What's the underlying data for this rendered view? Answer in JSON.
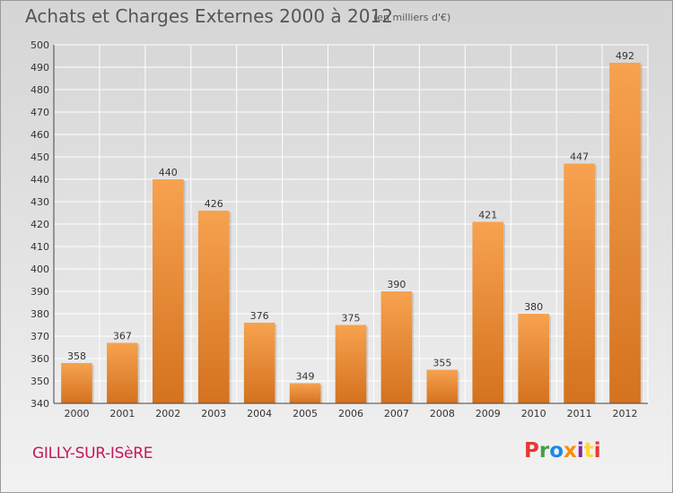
{
  "header": {
    "title": "Achats et Charges Externes 2000 à 2012",
    "subtitle": "(en milliers d'€)"
  },
  "footer": {
    "commune": "GILLY-SUR-ISèRE",
    "logo": "Proxiti",
    "logo_colors": [
      "#e53935",
      "#43a047",
      "#1e88e5",
      "#fb8c00",
      "#8e24aa",
      "#fdd835",
      "#e53935"
    ]
  },
  "chart_data": {
    "type": "bar",
    "categories": [
      "2000",
      "2001",
      "2002",
      "2003",
      "2004",
      "2005",
      "2006",
      "2007",
      "2008",
      "2009",
      "2010",
      "2011",
      "2012"
    ],
    "values": [
      358,
      367,
      440,
      426,
      376,
      349,
      375,
      390,
      355,
      421,
      380,
      447,
      492
    ],
    "title": "Achats et Charges Externes 2000 à 2012",
    "ylim": [
      340,
      500
    ],
    "yticks": [
      340,
      350,
      360,
      370,
      380,
      390,
      400,
      410,
      420,
      430,
      440,
      450,
      460,
      470,
      480,
      490,
      500
    ],
    "grid": true,
    "bar_color": "#f0913a"
  }
}
